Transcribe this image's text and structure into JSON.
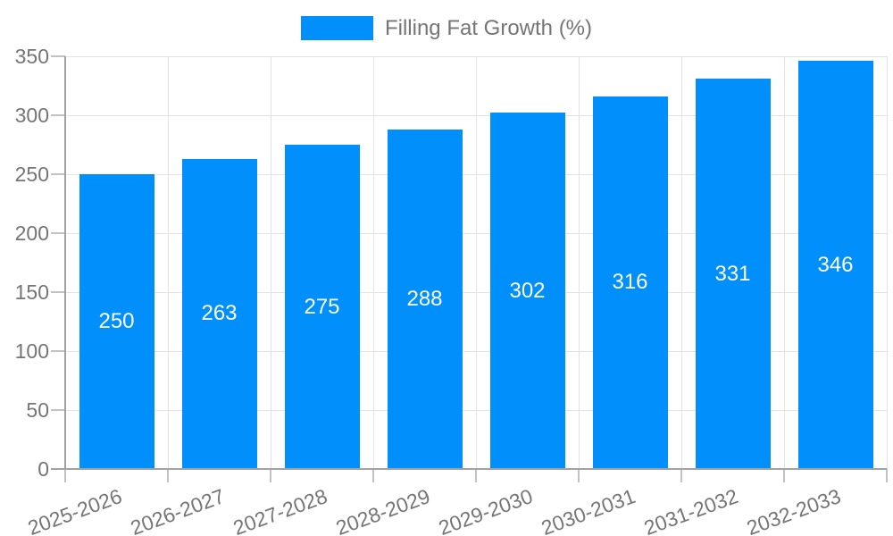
{
  "legend": {
    "label": "Filling Fat Growth (%)"
  },
  "colors": {
    "bar": "#008FFB",
    "bar_value_text": "#FFFFFF",
    "axis_text": "#757575",
    "legend_text": "#757575",
    "gridline": "#E3E3E3",
    "axis_line": "#A2A2A2",
    "tick": "#C2C2C2",
    "background": "#FFFFFF"
  },
  "chart_data": {
    "type": "bar",
    "title": "Filling Fat Growth (%)",
    "series_name": "Filling Fat Growth (%)",
    "categories": [
      "2025-2026",
      "2026-2027",
      "2027-2028",
      "2028-2029",
      "2029-2030",
      "2030-2031",
      "2031-2032",
      "2032-2033"
    ],
    "values": [
      250,
      263,
      275,
      288,
      302,
      316,
      331,
      346
    ],
    "xlabel": "",
    "ylabel": "",
    "ylim": [
      0,
      350
    ],
    "yticks": [
      0,
      50,
      100,
      150,
      200,
      250,
      300,
      350
    ],
    "grid": true,
    "legend_position": "top",
    "value_labels": "inside-middle",
    "x_tick_label_rotation_deg": -20
  }
}
